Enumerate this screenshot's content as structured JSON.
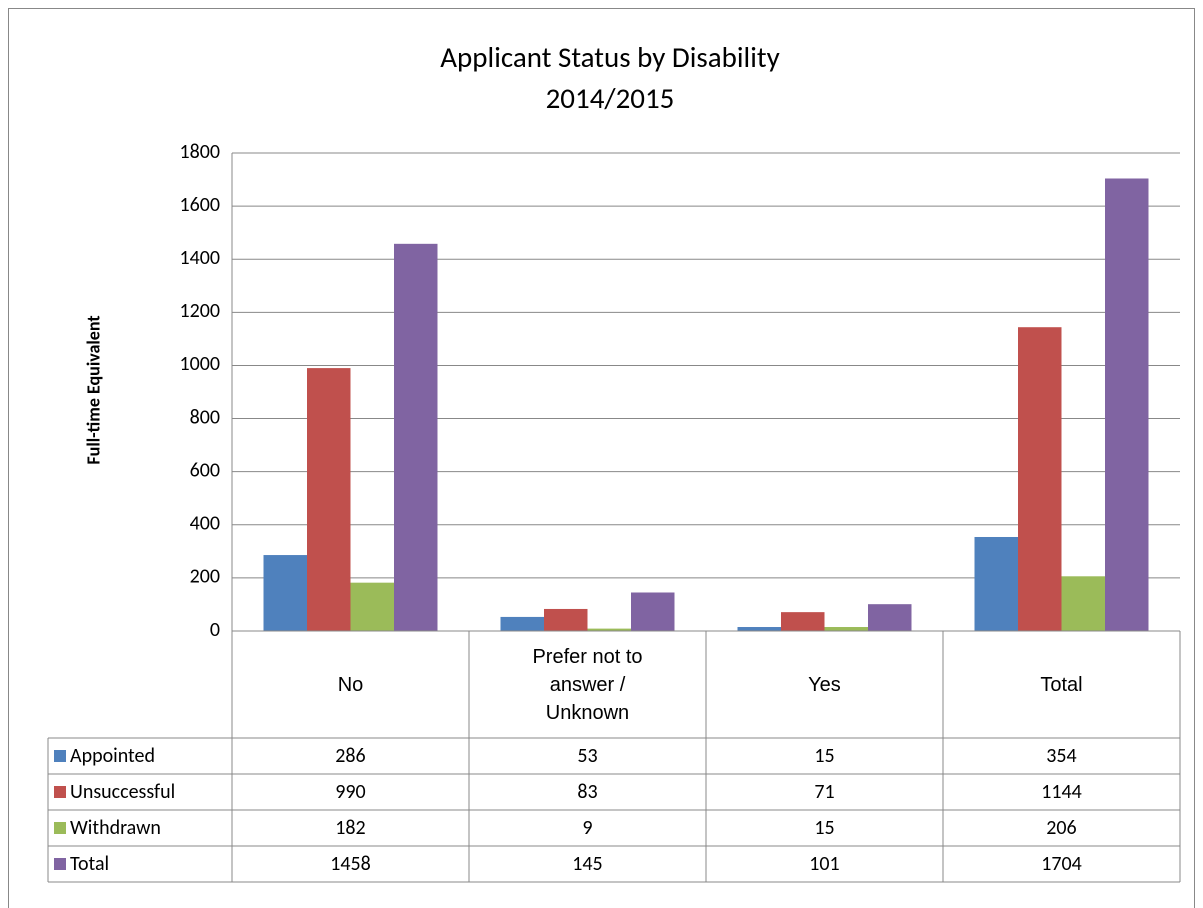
{
  "chart_data": {
    "type": "bar",
    "title": "Applicant Status by Disability",
    "subtitle": "2014/2015",
    "y_label": "Full-time Equivalent",
    "categories": [
      "No",
      "Prefer not to answer / Unknown",
      "Yes",
      "Total"
    ],
    "series": [
      {
        "name": "Appointed",
        "color": "#4f81bd",
        "values": [
          286,
          53,
          15,
          354
        ]
      },
      {
        "name": "Unsuccessful",
        "color": "#c0504d",
        "values": [
          990,
          83,
          71,
          1144
        ]
      },
      {
        "name": "Withdrawn",
        "color": "#9bbb59",
        "values": [
          182,
          9,
          15,
          206
        ]
      },
      {
        "name": "Total",
        "color": "#8064a2",
        "values": [
          1458,
          145,
          101,
          1704
        ]
      }
    ],
    "ylim": [
      0,
      1800
    ],
    "yticks": [
      0,
      200,
      400,
      600,
      800,
      1000,
      1200,
      1400,
      1600,
      1800
    ],
    "grid": true,
    "data_table": true
  }
}
